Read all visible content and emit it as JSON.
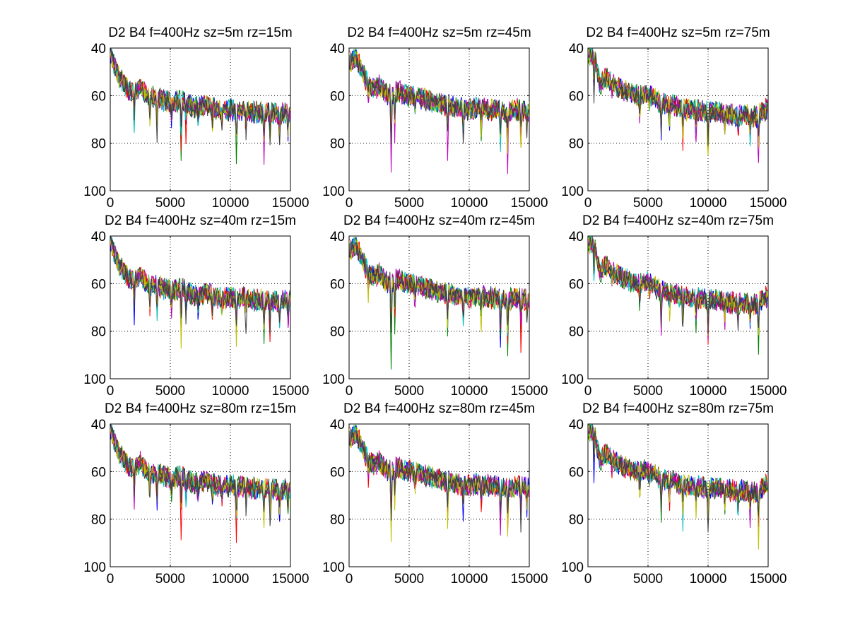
{
  "figure": {
    "background": "#ffffff",
    "series_colors": [
      "#0000ff",
      "#008000",
      "#ff0000",
      "#00bfbf",
      "#bf00bf",
      "#bfbf00",
      "#404040"
    ]
  },
  "chart_data": [
    {
      "type": "line",
      "title": "D2 B4 f=400Hz sz=5m rz=15m",
      "xlabel": "",
      "ylabel": "",
      "xlim": [
        0,
        15000
      ],
      "ylim": [
        40,
        100
      ],
      "y_reversed": true,
      "xticks": [
        0,
        5000,
        10000,
        15000
      ],
      "yticks": [
        40,
        60,
        80,
        100
      ],
      "grid": true,
      "series_count": 7,
      "trend_x": [
        0,
        500,
        1000,
        1500,
        2000,
        2500,
        3000,
        4000,
        5000,
        6000,
        7000,
        8000,
        9000,
        10000,
        11000,
        12000,
        13000,
        14000,
        15000
      ],
      "trend_y": [
        41,
        50,
        54,
        58,
        59,
        56,
        60,
        61,
        63,
        62,
        65,
        64,
        66,
        66,
        66,
        67,
        67,
        68,
        67
      ],
      "dips": [
        {
          "x": 2000,
          "y": 77
        },
        {
          "x": 3300,
          "y": 72
        },
        {
          "x": 3900,
          "y": 78
        },
        {
          "x": 5100,
          "y": 72
        },
        {
          "x": 5900,
          "y": 90
        },
        {
          "x": 6300,
          "y": 78
        },
        {
          "x": 7300,
          "y": 74
        },
        {
          "x": 8500,
          "y": 73
        },
        {
          "x": 9300,
          "y": 75
        },
        {
          "x": 10500,
          "y": 86
        },
        {
          "x": 11300,
          "y": 78
        },
        {
          "x": 12800,
          "y": 86
        },
        {
          "x": 13300,
          "y": 84
        },
        {
          "x": 14100,
          "y": 82
        },
        {
          "x": 14800,
          "y": 79
        }
      ]
    },
    {
      "type": "line",
      "title": "D2 B4 f=400Hz sz=5m rz=45m",
      "xlabel": "",
      "ylabel": "",
      "xlim": [
        0,
        15000
      ],
      "ylim": [
        40,
        100
      ],
      "y_reversed": true,
      "xticks": [
        0,
        5000,
        10000,
        15000
      ],
      "yticks": [
        40,
        60,
        80,
        100
      ],
      "grid": true,
      "series_count": 7,
      "trend_x": [
        0,
        500,
        1000,
        1500,
        2000,
        2500,
        3000,
        3500,
        4000,
        5000,
        6000,
        7000,
        8000,
        9000,
        10000,
        11000,
        12000,
        13000,
        14000,
        15000
      ],
      "trend_y": [
        46,
        44,
        49,
        54,
        57,
        56,
        59,
        60,
        58,
        60,
        61,
        63,
        64,
        65,
        66,
        65,
        66,
        67,
        66,
        67
      ],
      "dips": [
        {
          "x": 1600,
          "y": 65
        },
        {
          "x": 3500,
          "y": 92
        },
        {
          "x": 3800,
          "y": 80
        },
        {
          "x": 5500,
          "y": 70
        },
        {
          "x": 8200,
          "y": 84
        },
        {
          "x": 9500,
          "y": 80
        },
        {
          "x": 11000,
          "y": 78
        },
        {
          "x": 12600,
          "y": 86
        },
        {
          "x": 13200,
          "y": 91
        },
        {
          "x": 14300,
          "y": 86
        },
        {
          "x": 14800,
          "y": 78
        }
      ]
    },
    {
      "type": "line",
      "title": "D2 B4 f=400Hz sz=5m rz=75m",
      "xlabel": "",
      "ylabel": "",
      "xlim": [
        0,
        15000
      ],
      "ylim": [
        40,
        100
      ],
      "y_reversed": true,
      "xticks": [
        0,
        5000,
        10000,
        15000
      ],
      "yticks": [
        40,
        60,
        80,
        100
      ],
      "grid": true,
      "series_count": 7,
      "trend_x": [
        0,
        500,
        1000,
        1500,
        2000,
        2500,
        3000,
        4000,
        5000,
        6000,
        7000,
        8000,
        9000,
        10000,
        11000,
        12000,
        13000,
        14000,
        15000
      ],
      "trend_y": [
        43,
        42,
        56,
        52,
        55,
        56,
        58,
        60,
        59,
        63,
        64,
        66,
        66,
        67,
        67,
        68,
        68,
        69,
        65
      ],
      "dips": [
        {
          "x": 500,
          "y": 61
        },
        {
          "x": 2000,
          "y": 60
        },
        {
          "x": 4300,
          "y": 73
        },
        {
          "x": 5100,
          "y": 68
        },
        {
          "x": 6100,
          "y": 81
        },
        {
          "x": 6800,
          "y": 76
        },
        {
          "x": 7900,
          "y": 82
        },
        {
          "x": 9000,
          "y": 79
        },
        {
          "x": 10000,
          "y": 88
        },
        {
          "x": 11400,
          "y": 77
        },
        {
          "x": 12500,
          "y": 79
        },
        {
          "x": 13500,
          "y": 83
        },
        {
          "x": 14200,
          "y": 90
        }
      ]
    },
    {
      "type": "line",
      "title": "D2 B4 f=400Hz sz=40m rz=15m",
      "xlabel": "",
      "ylabel": "",
      "xlim": [
        0,
        15000
      ],
      "ylim": [
        40,
        100
      ],
      "y_reversed": true,
      "xticks": [
        0,
        5000,
        10000,
        15000
      ],
      "yticks": [
        40,
        60,
        80,
        100
      ],
      "grid": true,
      "series_count": 7,
      "trend_x": [
        0,
        500,
        1000,
        1500,
        2000,
        2500,
        3000,
        4000,
        5000,
        6000,
        7000,
        8000,
        9000,
        10000,
        11000,
        12000,
        13000,
        14000,
        15000
      ],
      "trend_y": [
        41,
        50,
        54,
        58,
        59,
        56,
        60,
        61,
        63,
        62,
        65,
        64,
        66,
        66,
        66,
        67,
        67,
        68,
        67
      ],
      "dips": [
        {
          "x": 2000,
          "y": 77
        },
        {
          "x": 3300,
          "y": 72
        },
        {
          "x": 3900,
          "y": 78
        },
        {
          "x": 5100,
          "y": 72
        },
        {
          "x": 5900,
          "y": 90
        },
        {
          "x": 6300,
          "y": 78
        },
        {
          "x": 7300,
          "y": 74
        },
        {
          "x": 8500,
          "y": 73
        },
        {
          "x": 9300,
          "y": 75
        },
        {
          "x": 10500,
          "y": 86
        },
        {
          "x": 11300,
          "y": 78
        },
        {
          "x": 12800,
          "y": 86
        },
        {
          "x": 13300,
          "y": 84
        },
        {
          "x": 14100,
          "y": 82
        },
        {
          "x": 14800,
          "y": 79
        }
      ]
    },
    {
      "type": "line",
      "title": "D2 B4 f=400Hz sz=40m rz=45m",
      "xlabel": "",
      "ylabel": "",
      "xlim": [
        0,
        15000
      ],
      "ylim": [
        40,
        100
      ],
      "y_reversed": true,
      "xticks": [
        0,
        5000,
        10000,
        15000
      ],
      "yticks": [
        40,
        60,
        80,
        100
      ],
      "grid": true,
      "series_count": 7,
      "trend_x": [
        0,
        500,
        1000,
        1500,
        2000,
        2500,
        3000,
        3500,
        4000,
        5000,
        6000,
        7000,
        8000,
        9000,
        10000,
        11000,
        12000,
        13000,
        14000,
        15000
      ],
      "trend_y": [
        46,
        44,
        49,
        54,
        57,
        56,
        59,
        60,
        58,
        60,
        61,
        63,
        64,
        65,
        66,
        65,
        66,
        67,
        66,
        67
      ],
      "dips": [
        {
          "x": 1600,
          "y": 65
        },
        {
          "x": 3500,
          "y": 92
        },
        {
          "x": 3800,
          "y": 80
        },
        {
          "x": 5500,
          "y": 70
        },
        {
          "x": 8200,
          "y": 84
        },
        {
          "x": 9500,
          "y": 80
        },
        {
          "x": 11000,
          "y": 78
        },
        {
          "x": 12600,
          "y": 86
        },
        {
          "x": 13200,
          "y": 91
        },
        {
          "x": 14300,
          "y": 86
        },
        {
          "x": 14800,
          "y": 78
        }
      ]
    },
    {
      "type": "line",
      "title": "D2 B4 f=400Hz sz=40m rz=75m",
      "xlabel": "",
      "ylabel": "",
      "xlim": [
        0,
        15000
      ],
      "ylim": [
        40,
        100
      ],
      "y_reversed": true,
      "xticks": [
        0,
        5000,
        10000,
        15000
      ],
      "yticks": [
        40,
        60,
        80,
        100
      ],
      "grid": true,
      "series_count": 7,
      "trend_x": [
        0,
        500,
        1000,
        1500,
        2000,
        2500,
        3000,
        4000,
        5000,
        6000,
        7000,
        8000,
        9000,
        10000,
        11000,
        12000,
        13000,
        14000,
        15000
      ],
      "trend_y": [
        43,
        42,
        56,
        52,
        55,
        56,
        58,
        60,
        59,
        63,
        64,
        66,
        66,
        67,
        67,
        68,
        68,
        69,
        65
      ],
      "dips": [
        {
          "x": 500,
          "y": 61
        },
        {
          "x": 2000,
          "y": 60
        },
        {
          "x": 4300,
          "y": 73
        },
        {
          "x": 5100,
          "y": 68
        },
        {
          "x": 6100,
          "y": 81
        },
        {
          "x": 6800,
          "y": 76
        },
        {
          "x": 7900,
          "y": 82
        },
        {
          "x": 9000,
          "y": 79
        },
        {
          "x": 10000,
          "y": 88
        },
        {
          "x": 11400,
          "y": 77
        },
        {
          "x": 12500,
          "y": 79
        },
        {
          "x": 13500,
          "y": 83
        },
        {
          "x": 14200,
          "y": 90
        }
      ]
    },
    {
      "type": "line",
      "title": "D2 B4 f=400Hz sz=80m rz=15m",
      "xlabel": "",
      "ylabel": "",
      "xlim": [
        0,
        15000
      ],
      "ylim": [
        40,
        100
      ],
      "y_reversed": true,
      "xticks": [
        0,
        5000,
        10000,
        15000
      ],
      "yticks": [
        40,
        60,
        80,
        100
      ],
      "grid": true,
      "series_count": 7,
      "trend_x": [
        0,
        500,
        1000,
        1500,
        2000,
        2500,
        3000,
        4000,
        5000,
        6000,
        7000,
        8000,
        9000,
        10000,
        11000,
        12000,
        13000,
        14000,
        15000
      ],
      "trend_y": [
        41,
        50,
        54,
        58,
        59,
        56,
        60,
        61,
        63,
        62,
        65,
        64,
        66,
        66,
        66,
        67,
        67,
        68,
        67
      ],
      "dips": [
        {
          "x": 2000,
          "y": 77
        },
        {
          "x": 3300,
          "y": 72
        },
        {
          "x": 3900,
          "y": 78
        },
        {
          "x": 5100,
          "y": 72
        },
        {
          "x": 5900,
          "y": 90
        },
        {
          "x": 6300,
          "y": 78
        },
        {
          "x": 7300,
          "y": 74
        },
        {
          "x": 8500,
          "y": 73
        },
        {
          "x": 9300,
          "y": 75
        },
        {
          "x": 10500,
          "y": 86
        },
        {
          "x": 11300,
          "y": 78
        },
        {
          "x": 12800,
          "y": 86
        },
        {
          "x": 13300,
          "y": 84
        },
        {
          "x": 14100,
          "y": 82
        },
        {
          "x": 14800,
          "y": 79
        }
      ]
    },
    {
      "type": "line",
      "title": "D2 B4 f=400Hz sz=80m rz=45m",
      "xlabel": "",
      "ylabel": "",
      "xlim": [
        0,
        15000
      ],
      "ylim": [
        40,
        100
      ],
      "y_reversed": true,
      "xticks": [
        0,
        5000,
        10000,
        15000
      ],
      "yticks": [
        40,
        60,
        80,
        100
      ],
      "grid": true,
      "series_count": 7,
      "trend_x": [
        0,
        500,
        1000,
        1500,
        2000,
        2500,
        3000,
        3500,
        4000,
        5000,
        6000,
        7000,
        8000,
        9000,
        10000,
        11000,
        12000,
        13000,
        14000,
        15000
      ],
      "trend_y": [
        46,
        44,
        49,
        54,
        57,
        56,
        59,
        60,
        58,
        60,
        61,
        63,
        64,
        65,
        66,
        65,
        66,
        67,
        66,
        67
      ],
      "dips": [
        {
          "x": 1600,
          "y": 65
        },
        {
          "x": 3500,
          "y": 92
        },
        {
          "x": 3800,
          "y": 80
        },
        {
          "x": 5500,
          "y": 70
        },
        {
          "x": 8200,
          "y": 84
        },
        {
          "x": 9500,
          "y": 80
        },
        {
          "x": 11000,
          "y": 78
        },
        {
          "x": 12600,
          "y": 86
        },
        {
          "x": 13200,
          "y": 91
        },
        {
          "x": 14300,
          "y": 86
        },
        {
          "x": 14800,
          "y": 78
        }
      ]
    },
    {
      "type": "line",
      "title": "D2 B4 f=400Hz sz=80m rz=75m",
      "xlabel": "",
      "ylabel": "",
      "xlim": [
        0,
        15000
      ],
      "ylim": [
        40,
        100
      ],
      "y_reversed": true,
      "xticks": [
        0,
        5000,
        10000,
        15000
      ],
      "yticks": [
        40,
        60,
        80,
        100
      ],
      "grid": true,
      "series_count": 7,
      "trend_x": [
        0,
        500,
        1000,
        1500,
        2000,
        2500,
        3000,
        4000,
        5000,
        6000,
        7000,
        8000,
        9000,
        10000,
        11000,
        12000,
        13000,
        14000,
        15000
      ],
      "trend_y": [
        43,
        42,
        56,
        52,
        55,
        56,
        58,
        60,
        59,
        63,
        64,
        66,
        66,
        67,
        67,
        68,
        68,
        69,
        65
      ],
      "dips": [
        {
          "x": 500,
          "y": 61
        },
        {
          "x": 2000,
          "y": 60
        },
        {
          "x": 4300,
          "y": 73
        },
        {
          "x": 5100,
          "y": 68
        },
        {
          "x": 6100,
          "y": 81
        },
        {
          "x": 6800,
          "y": 76
        },
        {
          "x": 7900,
          "y": 82
        },
        {
          "x": 9000,
          "y": 79
        },
        {
          "x": 10000,
          "y": 88
        },
        {
          "x": 11400,
          "y": 77
        },
        {
          "x": 12500,
          "y": 79
        },
        {
          "x": 13500,
          "y": 83
        },
        {
          "x": 14200,
          "y": 90
        }
      ]
    }
  ]
}
